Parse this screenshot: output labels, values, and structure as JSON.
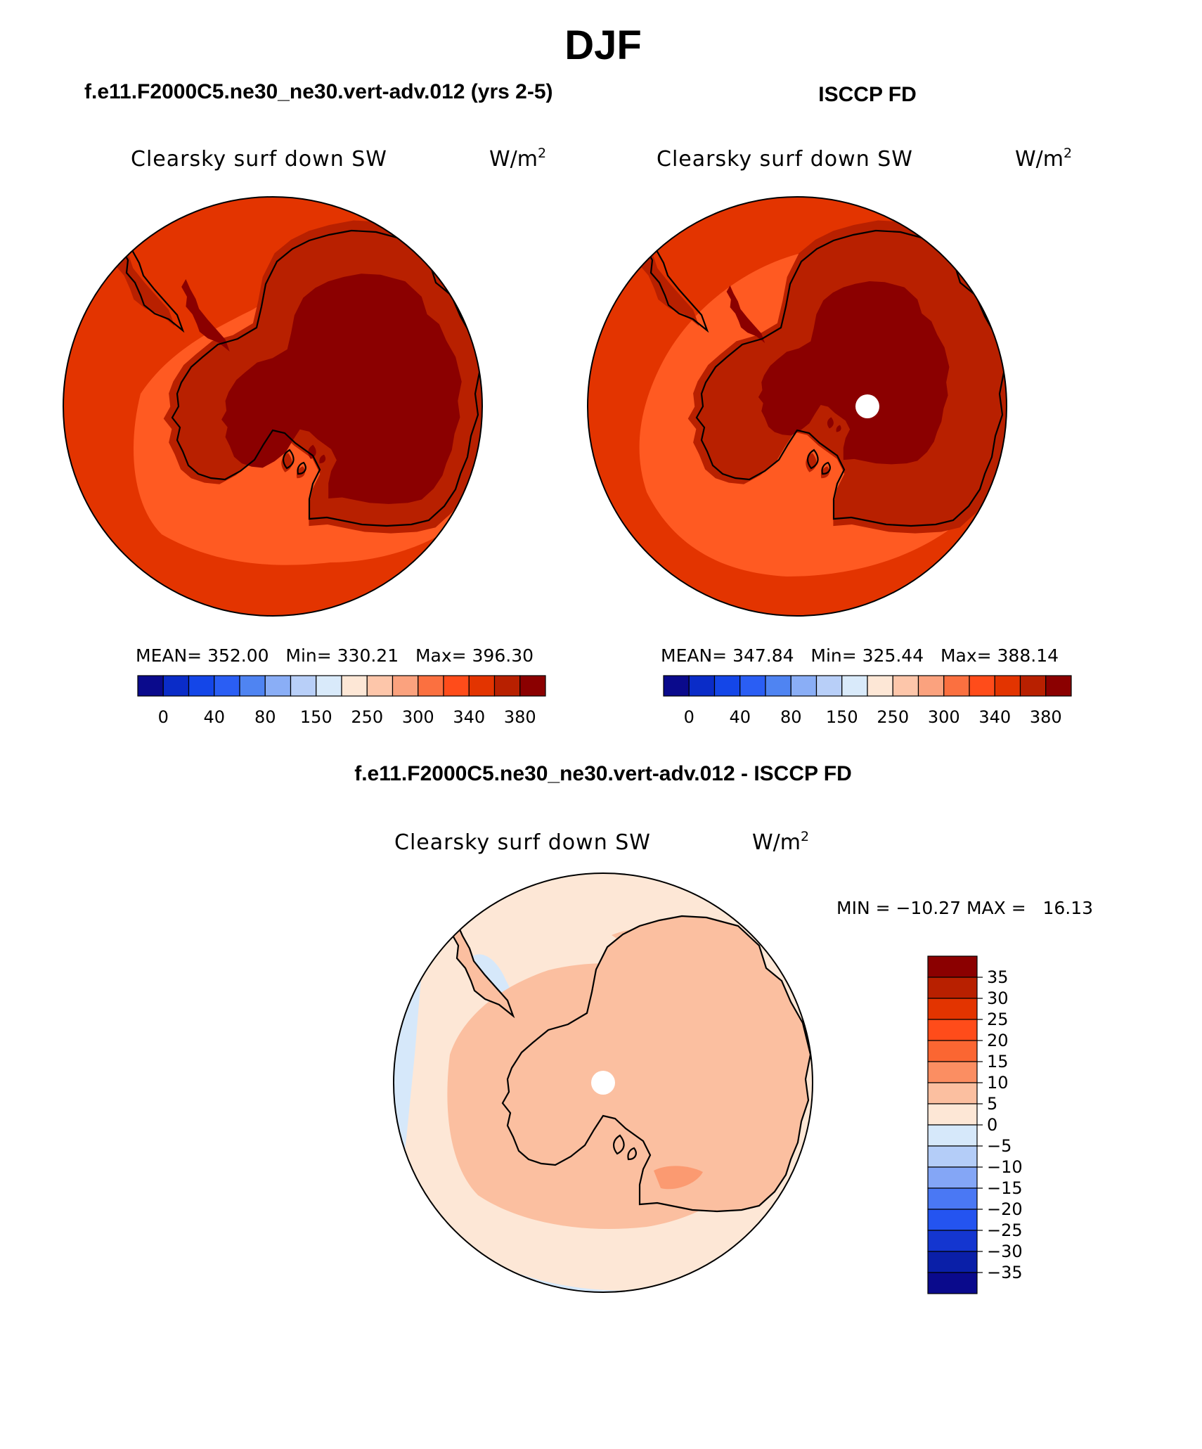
{
  "season": "DJF",
  "palette": {
    "full": [
      "#0a0a8c",
      "#0a2cc8",
      "#1446e8",
      "#2a5ef4",
      "#4f84f2",
      "#8aaef6",
      "#b8cff8",
      "#d9eafa",
      "#fde7d6",
      "#fdc6aa",
      "#fba27e",
      "#fb7040",
      "#ff4c1a",
      "#e33400",
      "#b82000",
      "#8b0000"
    ],
    "diff": [
      "#0a0a8c",
      "#0a1fa8",
      "#1436d0",
      "#2454f0",
      "#4a78f4",
      "#84a6f6",
      "#b4cdf8",
      "#d6e8fa",
      "#fde7d6",
      "#fbbfa0",
      "#fb8e62",
      "#fb6632",
      "#ff4c1a",
      "#e33400",
      "#b82000",
      "#8b0000"
    ],
    "model_fields": {
      "outer": "#e33400",
      "mid": "#ff5a22",
      "ice_edge": "#b82000",
      "interior": "#8b0000",
      "pole": "#ffffff"
    },
    "obs_fields": {
      "outer": "#e33400",
      "mid": "#ff5a22",
      "ice_edge": "#b82000",
      "interior": "#8b0000",
      "pole": "#ffffff"
    },
    "diff_fields": {
      "base": "#fde7d6",
      "warm": "#fbbfa0",
      "warmer": "#fb8e62",
      "cool": "#d6e8fa",
      "pole": "#ffffff"
    }
  },
  "panels": [
    {
      "id": "model",
      "case_title": "f.e11.F2000C5.ne30_ne30.vert-adv.012 (yrs 2-5)",
      "variable": "Clearsky surf down SW",
      "units": "W/m",
      "units_exp": "2",
      "stats": "MEAN= 352.00   Min= 330.21   Max= 396.30",
      "colorbar_labels": [
        "0",
        "40",
        "80",
        "150",
        "250",
        "300",
        "340",
        "380"
      ]
    },
    {
      "id": "obs",
      "case_title": "ISCCP FD",
      "variable": "Clearsky surf down SW",
      "units": "W/m",
      "units_exp": "2",
      "stats": "MEAN= 347.84   Min= 325.44   Max= 388.14",
      "colorbar_labels": [
        "0",
        "40",
        "80",
        "150",
        "250",
        "300",
        "340",
        "380"
      ]
    }
  ],
  "diff_panel": {
    "case_title": "f.e11.F2000C5.ne30_ne30.vert-adv.012 - ISCCP FD",
    "variable": "Clearsky surf down SW",
    "units": "W/m",
    "units_exp": "2",
    "stats": "MIN = −10.27 MAX =   16.13",
    "colorbar_labels": [
      "35",
      "30",
      "25",
      "20",
      "15",
      "10",
      "5",
      "0",
      "−5",
      "−10",
      "−15",
      "−20",
      "−25",
      "−30",
      "−35"
    ]
  }
}
